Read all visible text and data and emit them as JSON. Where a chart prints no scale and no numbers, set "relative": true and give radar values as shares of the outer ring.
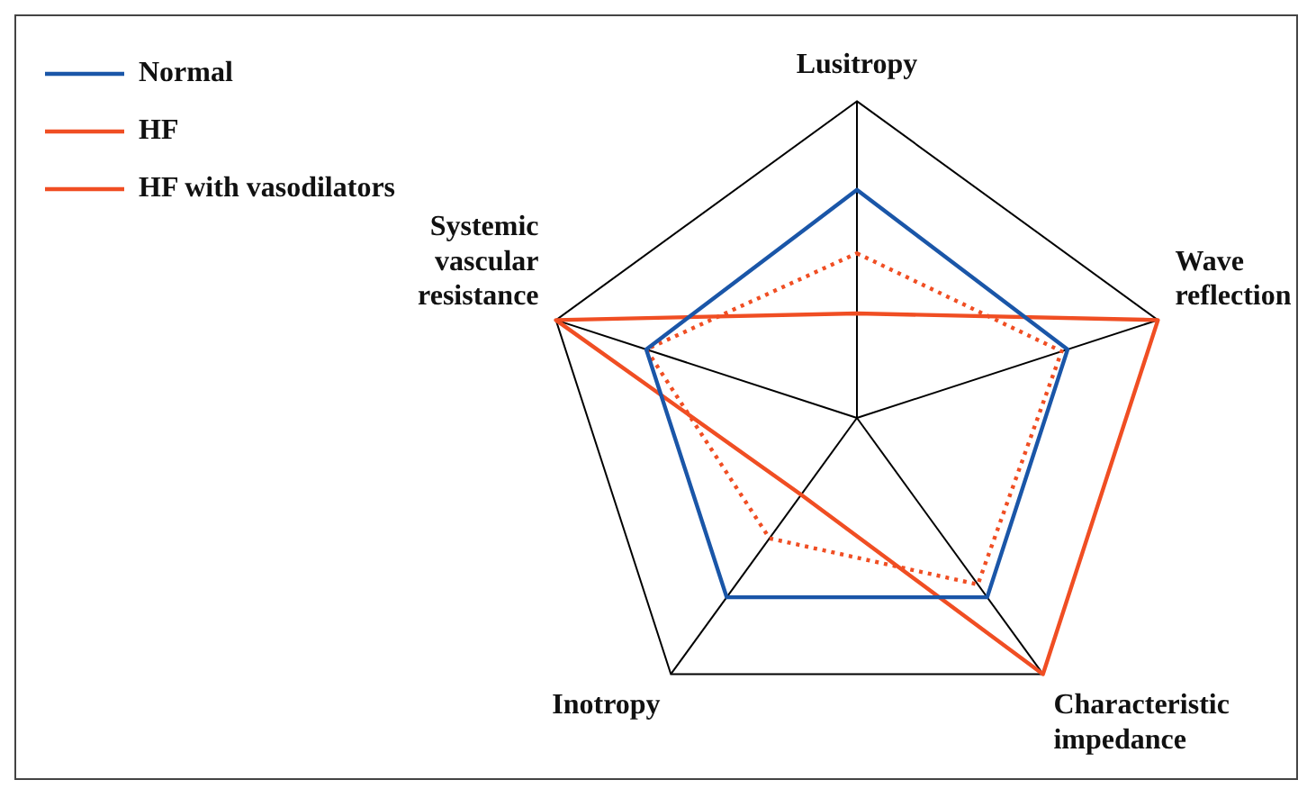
{
  "chart_data": {
    "type": "radar",
    "relative": true,
    "legend": "top left",
    "line_style": "solid",
    "marker": "none",
    "categories": [
      "Lusitropy",
      "Wave reflection",
      "Characteristic impedance",
      "Inotropy",
      "Systemic vascular resistance"
    ],
    "series": [
      {
        "name": "Normal",
        "color": "#1a56a8",
        "values": [
          0.72,
          0.7,
          0.7,
          0.7,
          0.7
        ]
      },
      {
        "name": "HF",
        "color": "#f04e23",
        "values": [
          0.33,
          1,
          1,
          0.3,
          1
        ]
      },
      {
        "name": "HF with vasodilators",
        "color": "#f04e23",
        "line_style": "dotted",
        "values": [
          0.52,
          0.68,
          0.65,
          0.47,
          0.7
        ]
      }
    ]
  }
}
